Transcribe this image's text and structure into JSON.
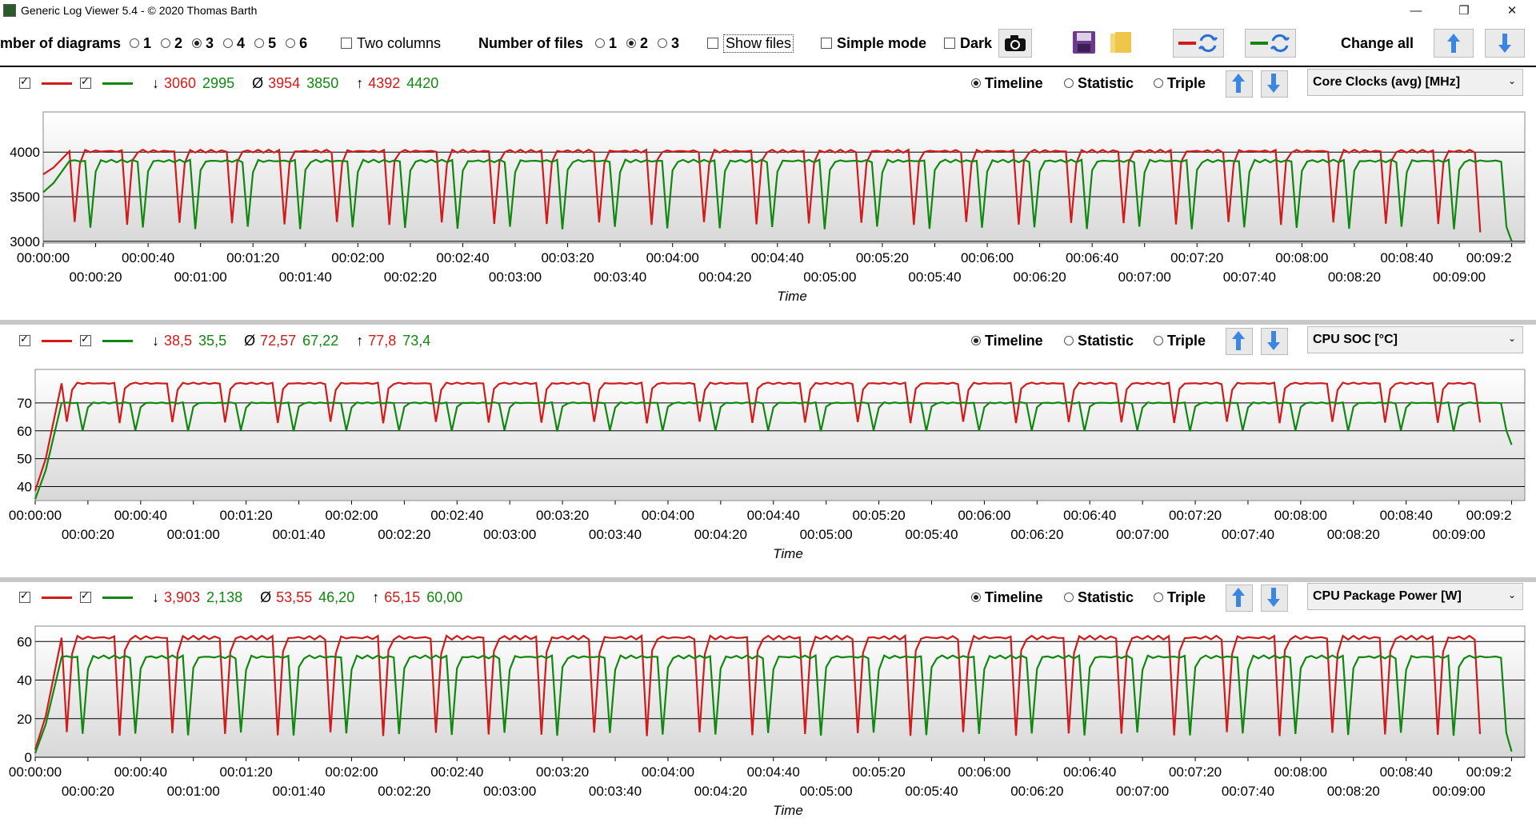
{
  "window": {
    "title": "Generic Log Viewer 5.4 - © 2020 Thomas Barth",
    "minimize": "—",
    "restore": "❐",
    "close": "✕"
  },
  "toolbar": {
    "diagrams_label": "mber of diagrams",
    "diagram_options": [
      "1",
      "2",
      "3",
      "4",
      "5",
      "6"
    ],
    "diagram_selected": "3",
    "two_columns_label": "Two columns",
    "files_label": "Number of files",
    "file_options": [
      "1",
      "2",
      "3"
    ],
    "file_selected": "2",
    "show_files_label": "Show files",
    "simple_mode_label": "Simple mode",
    "dark_label": "Dark",
    "change_all_label": "Change all"
  },
  "modes": {
    "timeline": "Timeline",
    "statistic": "Statistic",
    "triple": "Triple",
    "selected": "Timeline"
  },
  "colors": {
    "file1": "#d11a1a",
    "file2": "#108810"
  },
  "panels": [
    {
      "metric": "Core Clocks (avg) [MHz]",
      "stats": {
        "min_symbol": "↓",
        "min_a": "3060",
        "min_b": "2995",
        "avg_symbol": "Ø",
        "avg_a": "3954",
        "avg_b": "3850",
        "max_symbol": "↑",
        "max_a": "4392",
        "max_b": "4420"
      },
      "y_ticks": [
        "3000",
        "3500",
        "4000"
      ],
      "x_label": "Time"
    },
    {
      "metric": "CPU SOC [°C]",
      "stats": {
        "min_symbol": "↓",
        "min_a": "38,5",
        "min_b": "35,5",
        "avg_symbol": "Ø",
        "avg_a": "72,57",
        "avg_b": "67,22",
        "max_symbol": "↑",
        "max_a": "77,8",
        "max_b": "73,4"
      },
      "y_ticks": [
        "40",
        "50",
        "60",
        "70"
      ],
      "x_label": "Time"
    },
    {
      "metric": "CPU Package Power [W]",
      "stats": {
        "min_symbol": "↓",
        "min_a": "3,903",
        "min_b": "2,138",
        "avg_symbol": "Ø",
        "avg_a": "53,55",
        "avg_b": "46,20",
        "max_symbol": "↑",
        "max_a": "65,15",
        "max_b": "60,00"
      },
      "y_ticks": [
        "0",
        "20",
        "40",
        "60"
      ],
      "x_label": "Time"
    }
  ],
  "x_ticks_top": [
    "00:00:00",
    "00:00:40",
    "00:01:20",
    "00:02:00",
    "00:02:40",
    "00:03:20",
    "00:04:00",
    "00:04:40",
    "00:05:20",
    "00:06:00",
    "00:06:40",
    "00:07:20",
    "00:08:00",
    "00:08:40",
    "00:09:2"
  ],
  "x_ticks_bottom": [
    "00:00:20",
    "00:01:00",
    "00:01:40",
    "00:02:20",
    "00:03:00",
    "00:03:40",
    "00:04:20",
    "00:05:00",
    "00:05:40",
    "00:06:20",
    "00:07:00",
    "00:07:40",
    "00:08:20",
    "00:09:00"
  ],
  "chart_data": [
    {
      "type": "line",
      "x_unit": "seconds",
      "xlim": [
        0,
        565
      ],
      "ylim": [
        2980,
        4450
      ],
      "ylabel": "Core Clocks (avg) [MHz]",
      "xlabel": "Time",
      "grid": true,
      "series": [
        {
          "color": "#d11a1a",
          "base": 4010,
          "dip": 3200,
          "start": 3750,
          "end": 3100
        },
        {
          "color": "#108810",
          "base": 3900,
          "dip": 3150,
          "start": 3550,
          "end": 3000
        }
      ],
      "cycle_seconds": 20,
      "cycle_offset_a": 12,
      "cycle_offset_b": 18
    },
    {
      "type": "line",
      "x_unit": "seconds",
      "xlim": [
        0,
        565
      ],
      "ylim": [
        35,
        82
      ],
      "ylabel": "CPU SOC [°C]",
      "xlabel": "Time",
      "grid": true,
      "series": [
        {
          "color": "#d11a1a",
          "base": 77,
          "dip": 63,
          "start": 38.5,
          "end": 63
        },
        {
          "color": "#108810",
          "base": 70,
          "dip": 60,
          "start": 35.5,
          "end": 55
        }
      ],
      "cycle_seconds": 20,
      "cycle_offset_a": 12,
      "cycle_offset_b": 18
    },
    {
      "type": "line",
      "x_unit": "seconds",
      "xlim": [
        0,
        565
      ],
      "ylim": [
        0,
        68
      ],
      "ylabel": "CPU Package Power [W]",
      "xlabel": "Time",
      "grid": true,
      "series": [
        {
          "color": "#d11a1a",
          "base": 62,
          "dip": 12,
          "start": 4,
          "end": 12
        },
        {
          "color": "#108810",
          "base": 52,
          "dip": 12,
          "start": 2.1,
          "end": 3
        }
      ],
      "cycle_seconds": 20,
      "cycle_offset_a": 12,
      "cycle_offset_b": 18
    }
  ]
}
